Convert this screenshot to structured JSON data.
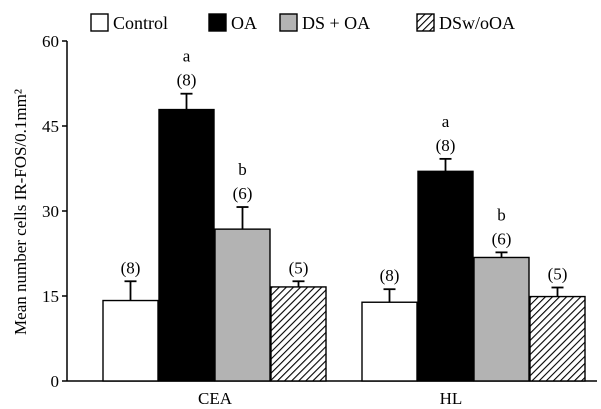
{
  "chart_data": {
    "type": "bar",
    "title": "",
    "xlabel": "",
    "ylabel": "Mean number cells IR-FOS/0.1mm²",
    "ylim": [
      0,
      60
    ],
    "yticks": [
      "0",
      "15",
      "30",
      "45",
      "60"
    ],
    "categories": [
      "CEA",
      "HL"
    ],
    "legend_position": "top",
    "grid": false,
    "series": [
      {
        "name": "Control",
        "fill": "#ffffff",
        "pattern": "none",
        "values": [
          14.2,
          13.9
        ],
        "errors": [
          3.4,
          2.3
        ],
        "n_labels": [
          "(8)",
          "(8)"
        ],
        "sig_labels": [
          "",
          ""
        ]
      },
      {
        "name": "OA",
        "fill": "#000000",
        "pattern": "none",
        "values": [
          47.9,
          37.0
        ],
        "errors": [
          2.8,
          2.2
        ],
        "n_labels": [
          "(8)",
          "(8)"
        ],
        "sig_labels": [
          "a",
          "a"
        ]
      },
      {
        "name": "DS + OA",
        "fill": "#b3b3b3",
        "pattern": "none",
        "values": [
          26.8,
          21.8
        ],
        "errors": [
          3.9,
          0.9
        ],
        "n_labels": [
          "(6)",
          "(6)"
        ],
        "sig_labels": [
          "b",
          "b"
        ]
      },
      {
        "name": "DSw/oOA",
        "fill": "#ffffff",
        "pattern": "diagonal-hatch",
        "values": [
          16.6,
          14.9
        ],
        "errors": [
          1.0,
          1.6
        ],
        "n_labels": [
          "(5)",
          "(5)"
        ],
        "sig_labels": [
          "",
          ""
        ]
      }
    ]
  }
}
